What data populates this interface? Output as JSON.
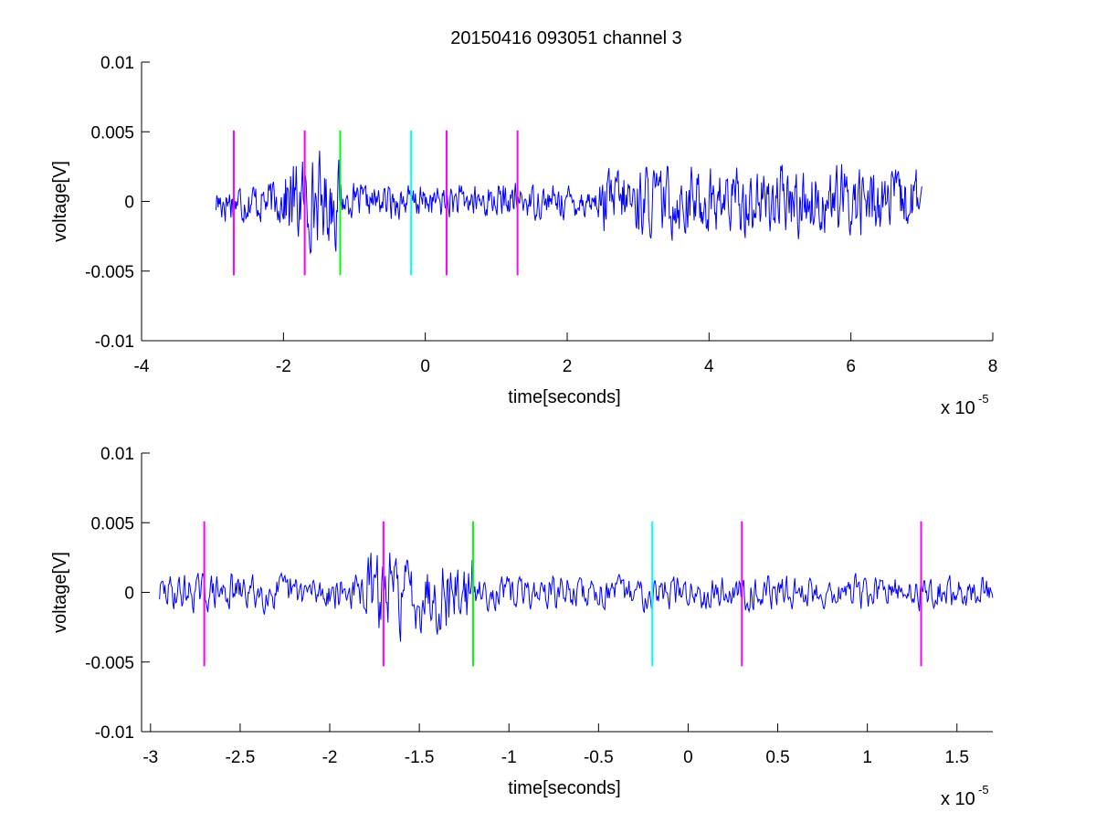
{
  "title": "20150416 093051 channel 3",
  "chart_data": [
    {
      "type": "line",
      "xlabel": "time[seconds]",
      "ylabel": "voltage[V]",
      "xlim": [
        -4e-05,
        8e-05
      ],
      "ylim": [
        -0.01,
        0.01
      ],
      "x_tick_labels": [
        "-4",
        "-2",
        "0",
        "2",
        "4",
        "6",
        "8"
      ],
      "x_tick_values": [
        -4e-05,
        -2e-05,
        0,
        2e-05,
        4e-05,
        6e-05,
        8e-05
      ],
      "y_tick_labels": [
        "-0.01",
        "-0.005",
        "0",
        "0.005",
        "0.01"
      ],
      "y_tick_values": [
        -0.01,
        -0.005,
        0,
        0.005,
        0.01
      ],
      "x_multiplier_base": "x 10",
      "x_multiplier_exponent": "-5",
      "series": [
        {
          "color": "#0000ff",
          "x_range": [
            -2.95e-05,
            7e-05
          ],
          "x_step": 1e-07,
          "waveform": "noise",
          "seed": 17,
          "amplitude_segments": [
            {
              "x": [
                -2.95e-05,
                -2e-05
              ],
              "amp": 0.0012
            },
            {
              "x": [
                -2e-05,
                -1.2e-05
              ],
              "amp": 0.0024
            },
            {
              "x": [
                -1.2e-05,
                2.5e-05
              ],
              "amp": 0.0009
            },
            {
              "x": [
                2.5e-05,
                7e-05
              ],
              "amp": 0.0019
            }
          ]
        }
      ],
      "markers": [
        {
          "x": -2.7e-05,
          "color": "#ff00ff",
          "ymin": -0.0053,
          "ymax": 0.0051
        },
        {
          "x": -1.7e-05,
          "color": "#ff00ff",
          "ymin": -0.0053,
          "ymax": 0.0051
        },
        {
          "x": -1.2e-05,
          "color": "#00ff00",
          "ymin": -0.0053,
          "ymax": 0.0051
        },
        {
          "x": -2e-06,
          "color": "#00ffff",
          "ymin": -0.0053,
          "ymax": 0.0051
        },
        {
          "x": 3e-06,
          "color": "#ff00ff",
          "ymin": -0.0053,
          "ymax": 0.0051
        },
        {
          "x": 1.3e-05,
          "color": "#ff00ff",
          "ymin": -0.0053,
          "ymax": 0.0051
        }
      ]
    },
    {
      "type": "line",
      "xlabel": "time[seconds]",
      "ylabel": "voltage[V]",
      "xlim": [
        -3.05e-05,
        1.7e-05
      ],
      "ylim": [
        -0.01,
        0.01
      ],
      "x_tick_labels": [
        "-3",
        "-2.5",
        "-2",
        "-1.5",
        "-1",
        "-0.5",
        "0",
        "0.5",
        "1",
        "1.5"
      ],
      "x_tick_values": [
        -3e-05,
        -2.5e-05,
        -2e-05,
        -1.5e-05,
        -1e-05,
        -5e-06,
        0,
        5e-06,
        1e-05,
        1.5e-05
      ],
      "y_tick_labels": [
        "-0.01",
        "-0.005",
        "0",
        "0.005",
        "0.01"
      ],
      "y_tick_values": [
        -0.01,
        -0.005,
        0,
        0.005,
        0.01
      ],
      "x_multiplier_base": "x 10",
      "x_multiplier_exponent": "-5",
      "series": [
        {
          "color": "#0000ff",
          "x_range": [
            -2.95e-05,
            1.7e-05
          ],
          "x_step": 5e-08,
          "waveform": "noise",
          "seed": 29,
          "amplitude_segments": [
            {
              "x": [
                -2.95e-05,
                -1.8e-05
              ],
              "amp": 0.001
            },
            {
              "x": [
                -1.8e-05,
                -1.2e-05
              ],
              "amp": 0.0022
            },
            {
              "x": [
                -1.2e-05,
                1.7e-05
              ],
              "amp": 0.0009
            }
          ]
        }
      ],
      "markers": [
        {
          "x": -2.7e-05,
          "color": "#ff00ff",
          "ymin": -0.0053,
          "ymax": 0.0051
        },
        {
          "x": -1.7e-05,
          "color": "#ff00ff",
          "ymin": -0.0053,
          "ymax": 0.0051
        },
        {
          "x": -1.2e-05,
          "color": "#00ff00",
          "ymin": -0.0053,
          "ymax": 0.0051
        },
        {
          "x": -2e-06,
          "color": "#00ffff",
          "ymin": -0.0053,
          "ymax": 0.0051
        },
        {
          "x": 3e-06,
          "color": "#ff00ff",
          "ymin": -0.0053,
          "ymax": 0.0051
        },
        {
          "x": 1.3e-05,
          "color": "#ff00ff",
          "ymin": -0.0053,
          "ymax": 0.0051
        }
      ]
    }
  ]
}
